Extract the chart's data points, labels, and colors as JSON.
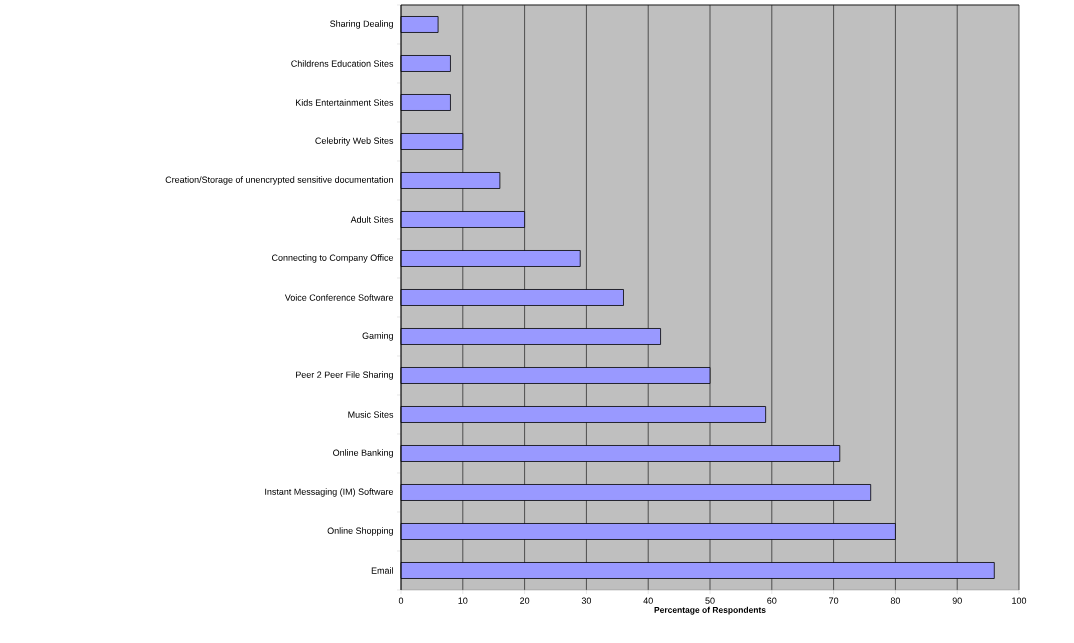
{
  "chart_data": {
    "type": "bar",
    "orientation": "horizontal",
    "xlabel": "Percentage of Respondents",
    "categories": [
      "Sharing Dealing",
      "Childrens Education Sites",
      "Kids Entertainment Sites",
      "Celebrity Web Sites",
      "Creation/Storage of unencrypted sensitive documentation",
      "Adult Sites",
      "Connecting to Company Office",
      "Voice Conference Software",
      "Gaming",
      "Peer 2 Peer File Sharing",
      "Music Sites",
      "Online Banking",
      "Instant Messaging (IM) Software",
      "Online Shopping",
      "Email"
    ],
    "values": [
      6,
      8,
      8,
      10,
      16,
      20,
      29,
      36,
      42,
      50,
      59,
      71,
      76,
      80,
      96
    ],
    "color": "#9999ff",
    "xlim": [
      0,
      100
    ],
    "xticks": [
      0,
      10,
      20,
      30,
      40,
      50,
      60,
      70,
      80,
      90,
      100
    ],
    "grid": "x"
  }
}
